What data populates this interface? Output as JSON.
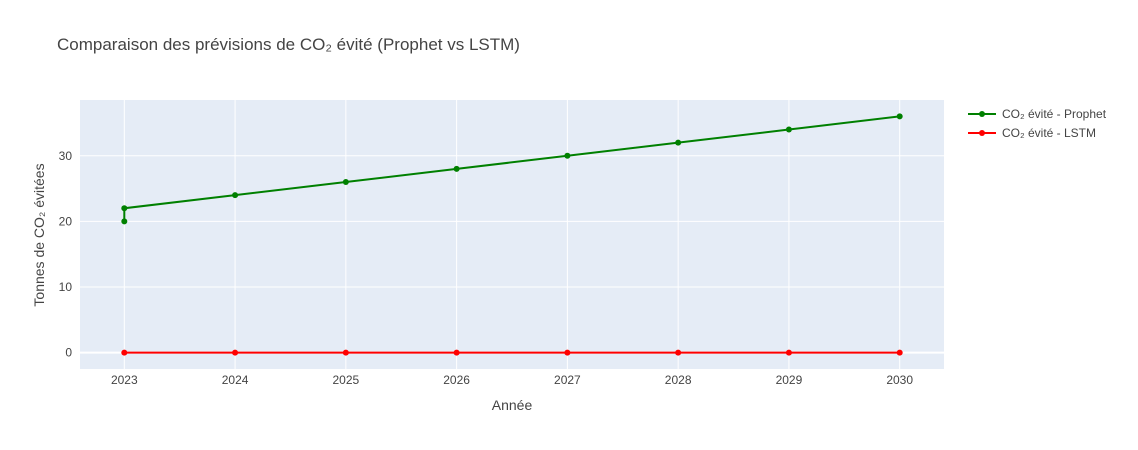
{
  "chart_data": {
    "type": "line",
    "title": "Comparaison des prévisions de CO₂ évité (Prophet vs LSTM)",
    "xlabel": "Année",
    "ylabel": "Tonnes de CO₂ évitées",
    "xlim": [
      2022.6,
      2030.4
    ],
    "ylim": [
      -2.5,
      38.5
    ],
    "x_ticks": [
      2023,
      2024,
      2025,
      2026,
      2027,
      2028,
      2029,
      2030
    ],
    "y_ticks": [
      0,
      10,
      20,
      30
    ],
    "grid": true,
    "legend_position": "top-right",
    "plot_bgcolor": "#e5ecf6",
    "series": [
      {
        "name": "CO₂ évité - Prophet",
        "color": "#008000",
        "x": [
          2023,
          2023,
          2024,
          2025,
          2026,
          2027,
          2028,
          2029,
          2030
        ],
        "y": [
          20,
          22,
          24,
          26,
          28,
          30,
          32,
          34,
          36
        ]
      },
      {
        "name": "CO₂ évité - LSTM",
        "color": "#ff0000",
        "x": [
          2023,
          2024,
          2025,
          2026,
          2027,
          2028,
          2029,
          2030
        ],
        "y": [
          0,
          0,
          0,
          0,
          0,
          0,
          0,
          0
        ]
      }
    ]
  }
}
